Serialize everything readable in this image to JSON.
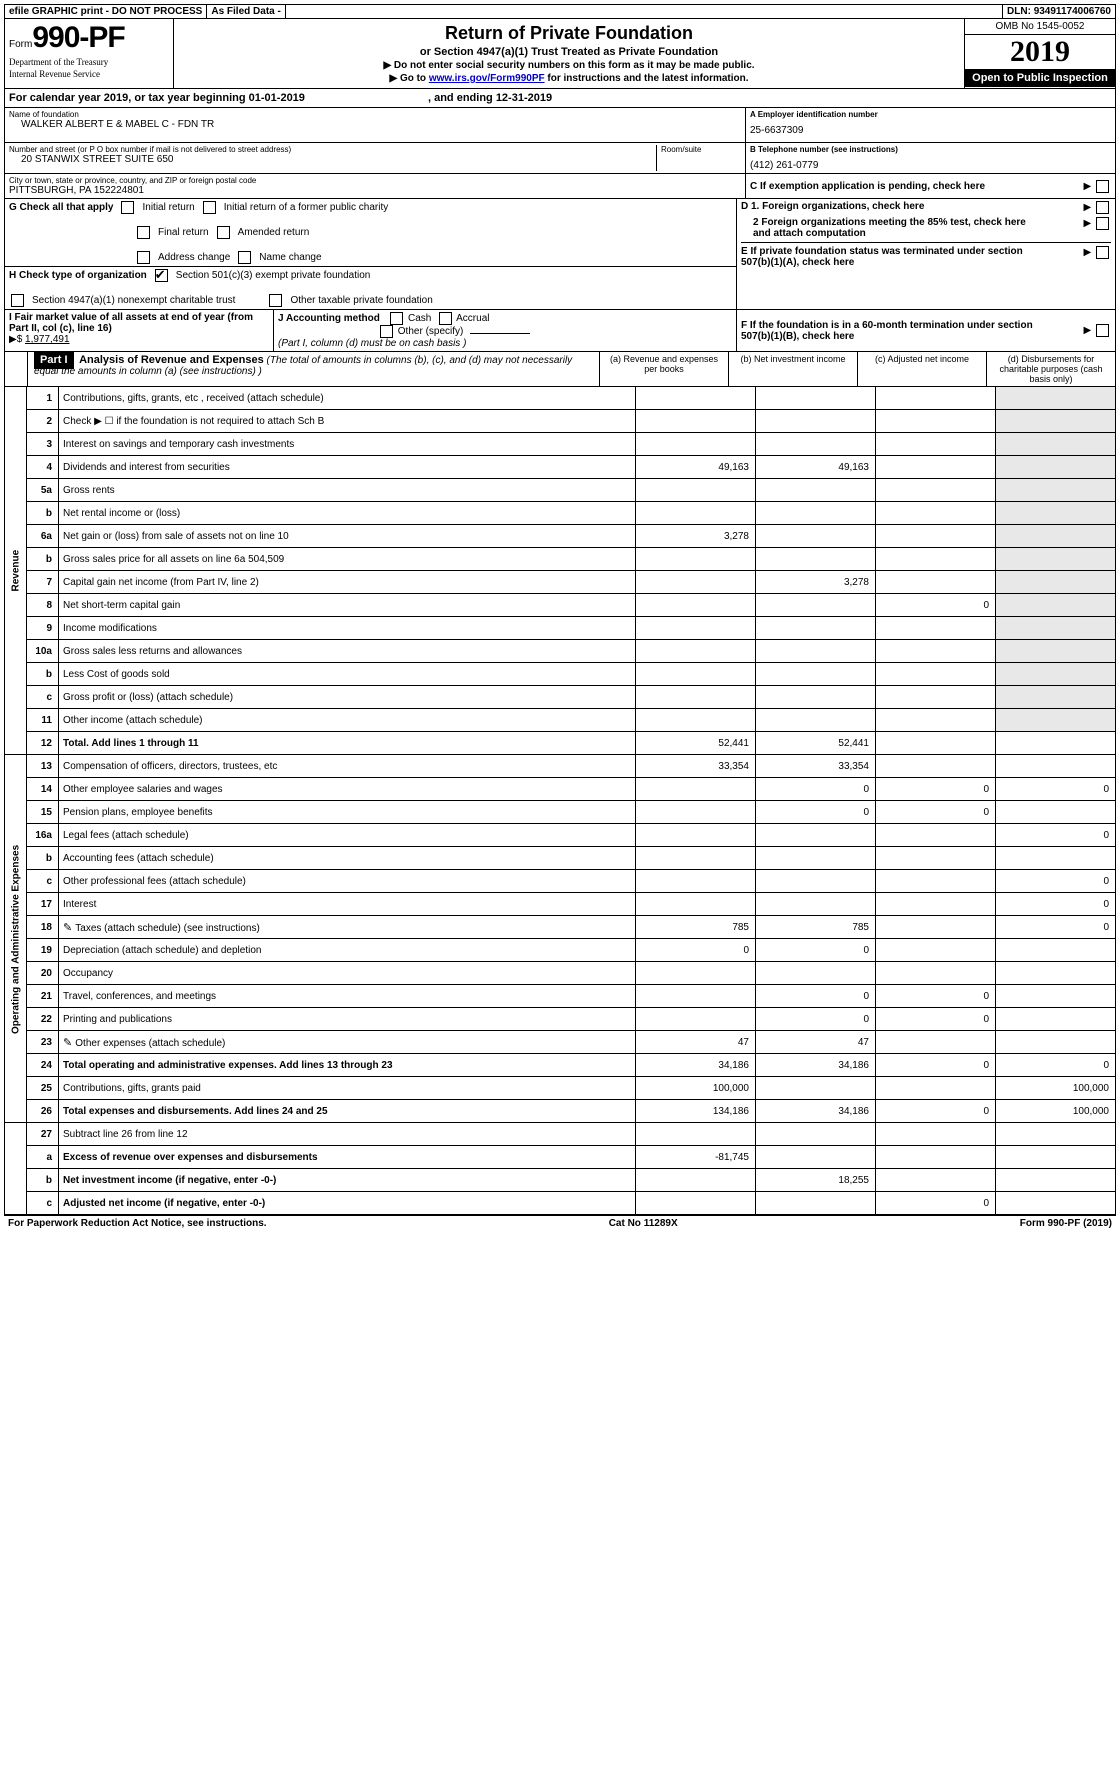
{
  "top_bar": {
    "efile": "efile GRAPHIC print - DO NOT PROCESS",
    "asfiled": "As Filed Data -",
    "dln_label": "DLN:",
    "dln": "93491174006760"
  },
  "header": {
    "form_prefix": "Form",
    "form_no": "990-PF",
    "dept1": "Department of the Treasury",
    "dept2": "Internal Revenue Service",
    "title": "Return of Private Foundation",
    "subtitle": "or Section 4947(a)(1) Trust Treated as Private Foundation",
    "note1": "▶ Do not enter social security numbers on this form as it may be made public.",
    "note2_pre": "▶ Go to ",
    "note2_link": "www.irs.gov/Form990PF",
    "note2_post": " for instructions and the latest information.",
    "omb": "OMB No 1545-0052",
    "year": "2019",
    "open": "Open to Public Inspection"
  },
  "calyear": {
    "text": "For calendar year 2019, or tax year beginning 01-01-2019",
    "ending": ", and ending 12-31-2019"
  },
  "info": {
    "name_label": "Name of foundation",
    "name": "WALKER ALBERT E & MABEL C - FDN TR",
    "a_label": "A Employer identification number",
    "a_val": "25-6637309",
    "addr_label": "Number and street (or P O  box number if mail is not delivered to street address)",
    "addr": "20 STANWIX STREET SUITE 650",
    "room_label": "Room/suite",
    "b_label": "B Telephone number (see instructions)",
    "b_val": "(412) 261-0779",
    "city_label": "City or town, state or province, country, and ZIP or foreign postal code",
    "city": "PITTSBURGH, PA  152224801",
    "c_label": "C If exemption application is pending, check here"
  },
  "G": {
    "label": "G Check all that apply",
    "opts": [
      "Initial return",
      "Initial return of a former public charity",
      "Final return",
      "Amended return",
      "Address change",
      "Name change"
    ]
  },
  "D": {
    "d1": "D 1. Foreign organizations, check here",
    "d2": "2 Foreign organizations meeting the 85% test, check here and attach computation",
    "e": "E  If private foundation status was terminated under section 507(b)(1)(A), check here"
  },
  "H": {
    "label": "H Check type of organization",
    "opt1": "Section 501(c)(3) exempt private foundation",
    "opt2": "Section 4947(a)(1) nonexempt charitable trust",
    "opt3": "Other taxable private foundation"
  },
  "I": {
    "label": "I Fair market value of all assets at end of year (from Part II, col  (c), line 16)",
    "val_prefix": "▶$ ",
    "val": "1,977,491"
  },
  "J": {
    "label": "J Accounting method",
    "cash": "Cash",
    "accrual": "Accrual",
    "other": "Other (specify)",
    "note": "(Part I, column (d) must be on cash basis )"
  },
  "F": {
    "label": "F  If the foundation is in a 60-month termination under section 507(b)(1)(B), check here"
  },
  "part1": {
    "label": "Part I",
    "title": "Analysis of Revenue and Expenses",
    "note": "(The total of amounts in columns (b), (c), and (d) may not necessarily equal the amounts in column (a) (see instructions) )",
    "cols": {
      "a": "(a) Revenue and expenses per books",
      "b": "(b) Net investment income",
      "c": "(c) Adjusted net income",
      "d": "(d) Disbursements for charitable purposes (cash basis only)"
    }
  },
  "revenue_label": "Revenue",
  "expenses_label": "Operating and Administrative Expenses",
  "rows": [
    {
      "n": "1",
      "d": "Contributions, gifts, grants, etc , received (attach schedule)"
    },
    {
      "n": "2",
      "d": "Check ▶ ☐ if the foundation is not required to attach Sch  B"
    },
    {
      "n": "3",
      "d": "Interest on savings and temporary cash investments"
    },
    {
      "n": "4",
      "d": "Dividends and interest from securities",
      "a": "49,163",
      "b": "49,163"
    },
    {
      "n": "5a",
      "d": "Gross rents"
    },
    {
      "n": "b",
      "d": "Net rental income or (loss)"
    },
    {
      "n": "6a",
      "d": "Net gain or (loss) from sale of assets not on line 10",
      "a": "3,278"
    },
    {
      "n": "b",
      "d": "Gross sales price for all assets on line 6a          504,509"
    },
    {
      "n": "7",
      "d": "Capital gain net income (from Part IV, line 2)",
      "b": "3,278"
    },
    {
      "n": "8",
      "d": "Net short-term capital gain",
      "c": "0"
    },
    {
      "n": "9",
      "d": "Income modifications"
    },
    {
      "n": "10a",
      "d": "Gross sales less returns and allowances"
    },
    {
      "n": "b",
      "d": "Less  Cost of goods sold"
    },
    {
      "n": "c",
      "d": "Gross profit or (loss) (attach schedule)"
    },
    {
      "n": "11",
      "d": "Other income (attach schedule)"
    },
    {
      "n": "12",
      "d": "Total. Add lines 1 through 11",
      "a": "52,441",
      "b": "52,441",
      "bold": true
    }
  ],
  "exp_rows": [
    {
      "n": "13",
      "d": "Compensation of officers, directors, trustees, etc",
      "a": "33,354",
      "b": "33,354"
    },
    {
      "n": "14",
      "d": "Other employee salaries and wages",
      "b": "0",
      "c": "0",
      "dcol": "0"
    },
    {
      "n": "15",
      "d": "Pension plans, employee benefits",
      "b": "0",
      "c": "0"
    },
    {
      "n": "16a",
      "d": "Legal fees (attach schedule)",
      "dcol": "0"
    },
    {
      "n": "b",
      "d": "Accounting fees (attach schedule)"
    },
    {
      "n": "c",
      "d": "Other professional fees (attach schedule)",
      "dcol": "0"
    },
    {
      "n": "17",
      "d": "Interest",
      "dcol": "0"
    },
    {
      "n": "18",
      "d": "Taxes (attach schedule) (see instructions)",
      "a": "785",
      "b": "785",
      "dcol": "0",
      "icon": true
    },
    {
      "n": "19",
      "d": "Depreciation (attach schedule) and depletion",
      "a": "0",
      "b": "0"
    },
    {
      "n": "20",
      "d": "Occupancy"
    },
    {
      "n": "21",
      "d": "Travel, conferences, and meetings",
      "b": "0",
      "c": "0"
    },
    {
      "n": "22",
      "d": "Printing and publications",
      "b": "0",
      "c": "0"
    },
    {
      "n": "23",
      "d": "Other expenses (attach schedule)",
      "a": "47",
      "b": "47",
      "icon": true
    },
    {
      "n": "24",
      "d": "Total operating and administrative expenses. Add lines 13 through 23",
      "a": "34,186",
      "b": "34,186",
      "c": "0",
      "dcol": "0",
      "bold": true
    },
    {
      "n": "25",
      "d": "Contributions, gifts, grants paid",
      "a": "100,000",
      "dcol": "100,000"
    },
    {
      "n": "26",
      "d": "Total expenses and disbursements. Add lines 24 and 25",
      "a": "134,186",
      "b": "34,186",
      "c": "0",
      "dcol": "100,000",
      "bold": true
    }
  ],
  "bottom_rows": [
    {
      "n": "27",
      "d": "Subtract line 26 from line 12"
    },
    {
      "n": "a",
      "d": "Excess of revenue over expenses and disbursements",
      "a": "-81,745",
      "bold": true
    },
    {
      "n": "b",
      "d": "Net investment income (if negative, enter -0-)",
      "b": "18,255",
      "bold": true
    },
    {
      "n": "c",
      "d": "Adjusted net income (if negative, enter -0-)",
      "c": "0",
      "bold": true
    }
  ],
  "footer": {
    "left": "For Paperwork Reduction Act Notice, see instructions.",
    "center": "Cat  No  11289X",
    "right": "Form 990-PF (2019)"
  }
}
